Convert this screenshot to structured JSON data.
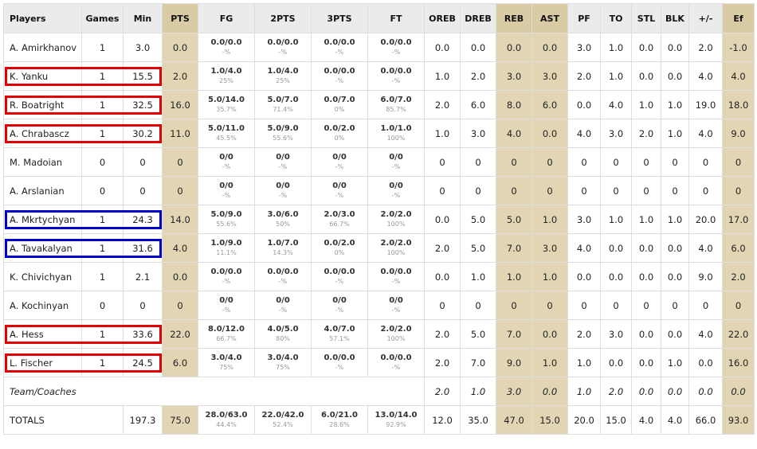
{
  "columns": [
    "Players",
    "Games",
    "Min",
    "PTS",
    "FG",
    "2PTS",
    "3PTS",
    "FT",
    "OREB",
    "DREB",
    "REB",
    "AST",
    "PF",
    "TO",
    "STL",
    "BLK",
    "+/-",
    "Ef"
  ],
  "highlight_columns": [
    "PTS",
    "REB",
    "AST",
    "Ef"
  ],
  "highlight_color": "#e1d5b3",
  "box_colors": {
    "red": "#e00000",
    "blue": "#0000cc"
  },
  "rows": [
    {
      "player": "A. Amirkhanov",
      "games": "1",
      "min": "3.0",
      "pts": "0.0",
      "fg": "0.0/0.0",
      "fg_pct": "-%",
      "two": "0.0/0.0",
      "two_pct": "-%",
      "three": "0.0/0.0",
      "three_pct": "-%",
      "ft": "0.0/0.0",
      "ft_pct": "-%",
      "oreb": "0.0",
      "dreb": "0.0",
      "reb": "0.0",
      "ast": "0.0",
      "pf": "3.0",
      "to": "1.0",
      "stl": "0.0",
      "blk": "0.0",
      "pm": "2.0",
      "ef": "-1.0"
    },
    {
      "player": "K. Yanku",
      "games": "1",
      "min": "15.5",
      "pts": "2.0",
      "fg": "1.0/4.0",
      "fg_pct": "25%",
      "two": "1.0/4.0",
      "two_pct": "25%",
      "three": "0.0/0.0",
      "three_pct": "-%",
      "ft": "0.0/0.0",
      "ft_pct": "-%",
      "oreb": "1.0",
      "dreb": "2.0",
      "reb": "3.0",
      "ast": "3.0",
      "pf": "2.0",
      "to": "1.0",
      "stl": "0.0",
      "blk": "0.0",
      "pm": "4.0",
      "ef": "4.0",
      "box": "red"
    },
    {
      "player": "R. Boatright",
      "games": "1",
      "min": "32.5",
      "pts": "16.0",
      "fg": "5.0/14.0",
      "fg_pct": "35.7%",
      "two": "5.0/7.0",
      "two_pct": "71.4%",
      "three": "0.0/7.0",
      "three_pct": "0%",
      "ft": "6.0/7.0",
      "ft_pct": "85.7%",
      "oreb": "2.0",
      "dreb": "6.0",
      "reb": "8.0",
      "ast": "6.0",
      "pf": "0.0",
      "to": "4.0",
      "stl": "1.0",
      "blk": "1.0",
      "pm": "19.0",
      "ef": "18.0",
      "box": "red"
    },
    {
      "player": "A. Chrabascz",
      "games": "1",
      "min": "30.2",
      "pts": "11.0",
      "fg": "5.0/11.0",
      "fg_pct": "45.5%",
      "two": "5.0/9.0",
      "two_pct": "55.6%",
      "three": "0.0/2.0",
      "three_pct": "0%",
      "ft": "1.0/1.0",
      "ft_pct": "100%",
      "oreb": "1.0",
      "dreb": "3.0",
      "reb": "4.0",
      "ast": "0.0",
      "pf": "4.0",
      "to": "3.0",
      "stl": "2.0",
      "blk": "1.0",
      "pm": "4.0",
      "ef": "9.0",
      "box": "red"
    },
    {
      "player": "M. Madoian",
      "games": "0",
      "min": "0",
      "pts": "0",
      "fg": "0/0",
      "fg_pct": "-%",
      "two": "0/0",
      "two_pct": "-%",
      "three": "0/0",
      "three_pct": "-%",
      "ft": "0/0",
      "ft_pct": "-%",
      "oreb": "0",
      "dreb": "0",
      "reb": "0",
      "ast": "0",
      "pf": "0",
      "to": "0",
      "stl": "0",
      "blk": "0",
      "pm": "0",
      "ef": "0"
    },
    {
      "player": "A. Arslanian",
      "games": "0",
      "min": "0",
      "pts": "0",
      "fg": "0/0",
      "fg_pct": "-%",
      "two": "0/0",
      "two_pct": "-%",
      "three": "0/0",
      "three_pct": "-%",
      "ft": "0/0",
      "ft_pct": "-%",
      "oreb": "0",
      "dreb": "0",
      "reb": "0",
      "ast": "0",
      "pf": "0",
      "to": "0",
      "stl": "0",
      "blk": "0",
      "pm": "0",
      "ef": "0"
    },
    {
      "player": "A. Mkrtychyan",
      "games": "1",
      "min": "24.3",
      "pts": "14.0",
      "fg": "5.0/9.0",
      "fg_pct": "55.6%",
      "two": "3.0/6.0",
      "two_pct": "50%",
      "three": "2.0/3.0",
      "three_pct": "66.7%",
      "ft": "2.0/2.0",
      "ft_pct": "100%",
      "oreb": "0.0",
      "dreb": "5.0",
      "reb": "5.0",
      "ast": "1.0",
      "pf": "3.0",
      "to": "1.0",
      "stl": "1.0",
      "blk": "1.0",
      "pm": "20.0",
      "ef": "17.0",
      "box": "blue"
    },
    {
      "player": "A. Tavakalyan",
      "games": "1",
      "min": "31.6",
      "pts": "4.0",
      "fg": "1.0/9.0",
      "fg_pct": "11.1%",
      "two": "1.0/7.0",
      "two_pct": "14.3%",
      "three": "0.0/2.0",
      "three_pct": "0%",
      "ft": "2.0/2.0",
      "ft_pct": "100%",
      "oreb": "2.0",
      "dreb": "5.0",
      "reb": "7.0",
      "ast": "3.0",
      "pf": "4.0",
      "to": "0.0",
      "stl": "0.0",
      "blk": "0.0",
      "pm": "4.0",
      "ef": "6.0",
      "box": "blue"
    },
    {
      "player": "K. Chivichyan",
      "games": "1",
      "min": "2.1",
      "pts": "0.0",
      "fg": "0.0/0.0",
      "fg_pct": "-%",
      "two": "0.0/0.0",
      "two_pct": "-%",
      "three": "0.0/0.0",
      "three_pct": "-%",
      "ft": "0.0/0.0",
      "ft_pct": "-%",
      "oreb": "0.0",
      "dreb": "1.0",
      "reb": "1.0",
      "ast": "1.0",
      "pf": "0.0",
      "to": "0.0",
      "stl": "0.0",
      "blk": "0.0",
      "pm": "9.0",
      "ef": "2.0"
    },
    {
      "player": "A. Kochinyan",
      "games": "0",
      "min": "0",
      "pts": "0",
      "fg": "0/0",
      "fg_pct": "-%",
      "two": "0/0",
      "two_pct": "-%",
      "three": "0/0",
      "three_pct": "-%",
      "ft": "0/0",
      "ft_pct": "-%",
      "oreb": "0",
      "dreb": "0",
      "reb": "0",
      "ast": "0",
      "pf": "0",
      "to": "0",
      "stl": "0",
      "blk": "0",
      "pm": "0",
      "ef": "0"
    },
    {
      "player": "A. Hess",
      "games": "1",
      "min": "33.6",
      "pts": "22.0",
      "fg": "8.0/12.0",
      "fg_pct": "66.7%",
      "two": "4.0/5.0",
      "two_pct": "80%",
      "three": "4.0/7.0",
      "three_pct": "57.1%",
      "ft": "2.0/2.0",
      "ft_pct": "100%",
      "oreb": "2.0",
      "dreb": "5.0",
      "reb": "7.0",
      "ast": "0.0",
      "pf": "2.0",
      "to": "3.0",
      "stl": "0.0",
      "blk": "0.0",
      "pm": "4.0",
      "ef": "22.0",
      "box": "red"
    },
    {
      "player": "L. Fischer",
      "games": "1",
      "min": "24.5",
      "pts": "6.0",
      "fg": "3.0/4.0",
      "fg_pct": "75%",
      "two": "3.0/4.0",
      "two_pct": "75%",
      "three": "0.0/0.0",
      "three_pct": "-%",
      "ft": "0.0/0.0",
      "ft_pct": "-%",
      "oreb": "2.0",
      "dreb": "7.0",
      "reb": "9.0",
      "ast": "1.0",
      "pf": "1.0",
      "to": "0.0",
      "stl": "0.0",
      "blk": "1.0",
      "pm": "0.0",
      "ef": "16.0",
      "box": "red"
    }
  ],
  "team": {
    "label": "Team/Coaches",
    "oreb": "2.0",
    "dreb": "1.0",
    "reb": "3.0",
    "ast": "0.0",
    "pf": "1.0",
    "to": "2.0",
    "stl": "0.0",
    "blk": "0.0",
    "pm": "0.0",
    "ef": "0.0"
  },
  "totals": {
    "label": "TOTALS",
    "min": "197.3",
    "pts": "75.0",
    "fg": "28.0/63.0",
    "fg_pct": "44.4%",
    "two": "22.0/42.0",
    "two_pct": "52.4%",
    "three": "6.0/21.0",
    "three_pct": "28.6%",
    "ft": "13.0/14.0",
    "ft_pct": "92.9%",
    "oreb": "12.0",
    "dreb": "35.0",
    "reb": "47.0",
    "ast": "15.0",
    "pf": "20.0",
    "to": "15.0",
    "stl": "4.0",
    "blk": "4.0",
    "pm": "66.0",
    "ef": "93.0"
  }
}
